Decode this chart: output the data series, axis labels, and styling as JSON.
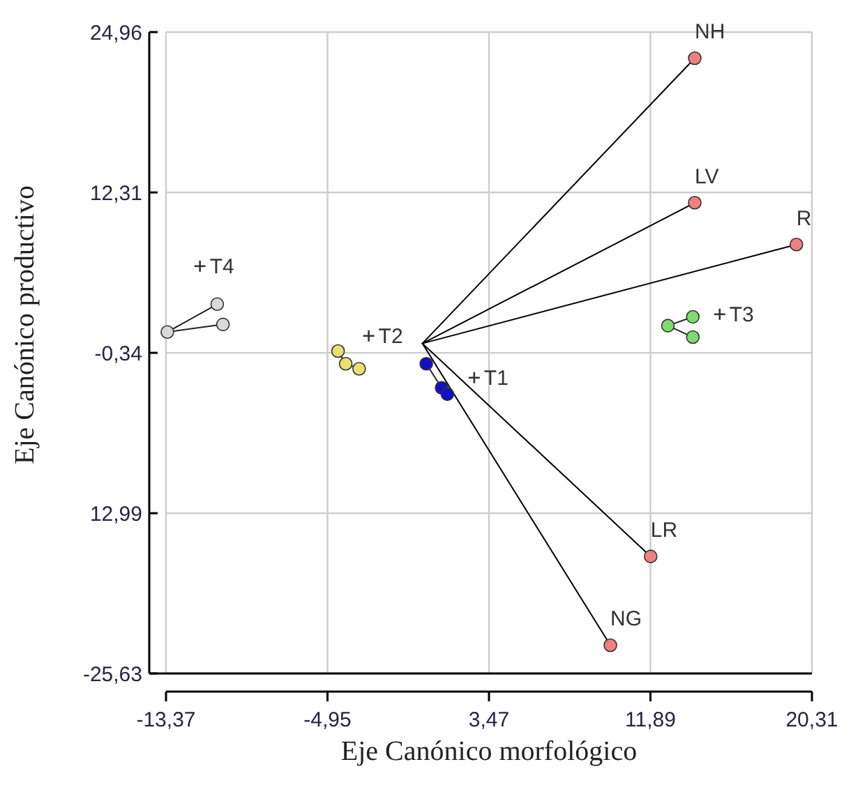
{
  "chart_data": {
    "type": "scatter",
    "xlabel": "Eje Canónico morfológico",
    "ylabel": "Eje Canónico productivo",
    "xlim": [
      -13.37,
      20.31
    ],
    "ylim": [
      -25.63,
      24.96
    ],
    "xticks": [
      {
        "value": -13.37,
        "label": "-13,37"
      },
      {
        "value": -4.95,
        "label": "-4,95"
      },
      {
        "value": 3.47,
        "label": "3,47"
      },
      {
        "value": 11.89,
        "label": "11,89"
      },
      {
        "value": 20.31,
        "label": "20,31"
      }
    ],
    "yticks": [
      {
        "value": -25.63,
        "label": "-25,63"
      },
      {
        "value": -12.99,
        "label": "12,99"
      },
      {
        "value": -0.34,
        "label": "-0,34"
      },
      {
        "value": 12.31,
        "label": "12,31"
      },
      {
        "value": 24.96,
        "label": "24,96"
      }
    ],
    "grid": true,
    "series": [
      {
        "type": "line",
        "marker": "none",
        "color": "#000000",
        "x": [
          0,
          14.2
        ],
        "values": [
          0.4,
          22.9
        ]
      },
      {
        "type": "line",
        "marker": "none",
        "color": "#000000",
        "x": [
          0,
          14.2
        ],
        "values": [
          0.4,
          11.5
        ]
      },
      {
        "type": "line",
        "marker": "none",
        "color": "#000000",
        "x": [
          0,
          19.5
        ],
        "values": [
          0.4,
          8.2
        ]
      },
      {
        "type": "line",
        "marker": "none",
        "color": "#000000",
        "x": [
          0,
          11.9
        ],
        "values": [
          0.4,
          -16.4
        ]
      },
      {
        "type": "line",
        "marker": "none",
        "color": "#000000",
        "x": [
          0,
          9.8
        ],
        "values": [
          0.4,
          -23.4
        ]
      },
      {
        "marker": "circle",
        "color": "#f08080",
        "x": [
          14.2,
          14.2,
          19.5,
          11.9,
          9.8
        ],
        "values": [
          22.9,
          11.5,
          8.2,
          -16.4,
          -23.4
        ]
      },
      {
        "type": "line",
        "marker": "circle",
        "color": "#d9d9d9",
        "x": [
          -10.4,
          -13.3,
          -10.7
        ],
        "values": [
          1.9,
          1.3,
          3.5
        ]
      },
      {
        "type": "line",
        "marker": "circle",
        "color": "#e8e070",
        "x": [
          -4.4,
          -4.0,
          -3.3
        ],
        "values": [
          -0.2,
          -1.2,
          -1.6
        ]
      },
      {
        "type": "line",
        "marker": "circle",
        "color": "#1010c8",
        "x": [
          0.2,
          1.0,
          1.3
        ],
        "values": [
          -1.2,
          -3.1,
          -3.6
        ]
      },
      {
        "type": "line",
        "marker": "circle",
        "color": "#7ddc6e",
        "x": [
          14.1,
          12.8,
          14.1
        ],
        "values": [
          0.9,
          1.8,
          2.5
        ]
      },
      {
        "marker": "cross",
        "color": "#333333",
        "x": [
          -11.6,
          -2.8,
          2.7,
          15.5
        ],
        "values": [
          6.5,
          1.0,
          -2.3,
          2.7
        ]
      }
    ],
    "annotations": [
      {
        "text": "NH",
        "x": 14.2,
        "y": 22.9
      },
      {
        "text": "LV",
        "x": 14.2,
        "y": 11.5
      },
      {
        "text": "R",
        "x": 19.5,
        "y": 8.2
      },
      {
        "text": "LR",
        "x": 11.9,
        "y": -16.4
      },
      {
        "text": "NG",
        "x": 9.8,
        "y": -23.4
      },
      {
        "text": "T4",
        "x": -11.6,
        "y": 6.5
      },
      {
        "text": "T2",
        "x": -2.8,
        "y": 1.0
      },
      {
        "text": "T1",
        "x": 2.7,
        "y": -2.3
      },
      {
        "text": "T3",
        "x": 15.5,
        "y": 2.7
      }
    ]
  }
}
